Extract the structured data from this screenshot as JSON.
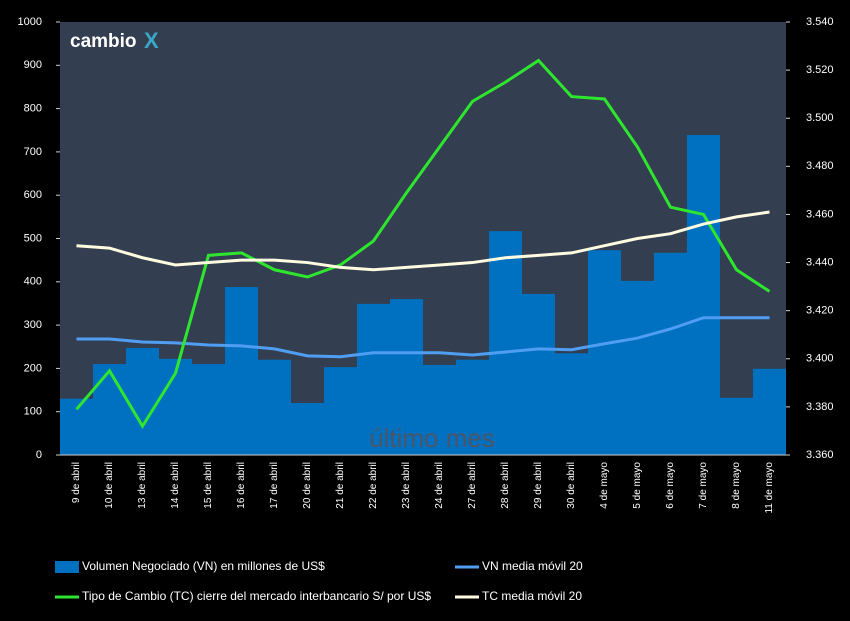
{
  "chart_data": {
    "type": "bar-line",
    "logo": {
      "text": "cambio",
      "mark": "X"
    },
    "annotation": "último mes",
    "categories": [
      "9 de abril",
      "10 de abril",
      "13 de abril",
      "14 de abril",
      "15 de abril",
      "16 de abril",
      "17 de abril",
      "20 de abril",
      "21 de abril",
      "22 de abril",
      "23 de abril",
      "24 de abril",
      "27 de abril",
      "28 de abril",
      "29 de abril",
      "30 de abril",
      "4 de mayo",
      "5 de mayo",
      "6 de mayo",
      "7 de mayo",
      "8 de mayo",
      "11 de mayo"
    ],
    "series": [
      {
        "name": "Volumen Negociado (VN) en millones de US$",
        "type": "bar",
        "color": "#0070c0",
        "axis": "y",
        "values": [
          130,
          210,
          247,
          222,
          210,
          388,
          220,
          120,
          203,
          349,
          360,
          208,
          220,
          517,
          372,
          235,
          473,
          402,
          467,
          739,
          132,
          199
        ]
      },
      {
        "name": "VN media móvil 20",
        "type": "line",
        "color": "#4f9ef2",
        "axis": "y",
        "values": [
          268,
          268,
          261,
          259,
          254,
          252,
          245,
          229,
          227,
          236,
          236,
          236,
          231,
          238,
          245,
          243,
          257,
          270,
          291,
          317,
          317,
          317
        ]
      },
      {
        "name": "Tipo de Cambio (TC) cierre del mercado interbancario S/ por US$",
        "type": "line",
        "color": "#2ee62e",
        "axis": "y2",
        "values": [
          3.379,
          3.395,
          3.372,
          3.394,
          3.443,
          3.444,
          3.437,
          3.434,
          3.439,
          3.449,
          3.469,
          3.488,
          3.507,
          3.515,
          3.524,
          3.509,
          3.508,
          3.488,
          3.463,
          3.46,
          3.437,
          3.428
        ]
      },
      {
        "name": "TC media móvil 20",
        "type": "line",
        "color": "#fffbe0",
        "axis": "y2",
        "values": [
          3.447,
          3.446,
          3.442,
          3.439,
          3.44,
          3.441,
          3.441,
          3.44,
          3.438,
          3.437,
          3.438,
          3.439,
          3.44,
          3.442,
          3.443,
          3.444,
          3.447,
          3.45,
          3.452,
          3.456,
          3.459,
          3.461
        ]
      }
    ],
    "ylim": [
      0,
      1000
    ],
    "yticks": [
      0,
      100,
      200,
      300,
      400,
      500,
      600,
      700,
      800,
      900,
      1000
    ],
    "y2lim": [
      3.36,
      3.54
    ],
    "y2ticks": [
      {
        "value": 3.36,
        "label": "3.360"
      },
      {
        "value": 3.38,
        "label": "3.380"
      },
      {
        "value": 3.4,
        "label": "3.400"
      },
      {
        "value": 3.42,
        "label": "3.420"
      },
      {
        "value": 3.44,
        "label": "3.440"
      },
      {
        "value": 3.46,
        "label": "3.460"
      },
      {
        "value": 3.48,
        "label": "3.480"
      },
      {
        "value": 3.5,
        "label": "3.500"
      },
      {
        "value": 3.52,
        "label": "3.520"
      },
      {
        "value": 3.54,
        "label": "3.540"
      }
    ],
    "grid": false,
    "legend": "bottom"
  }
}
